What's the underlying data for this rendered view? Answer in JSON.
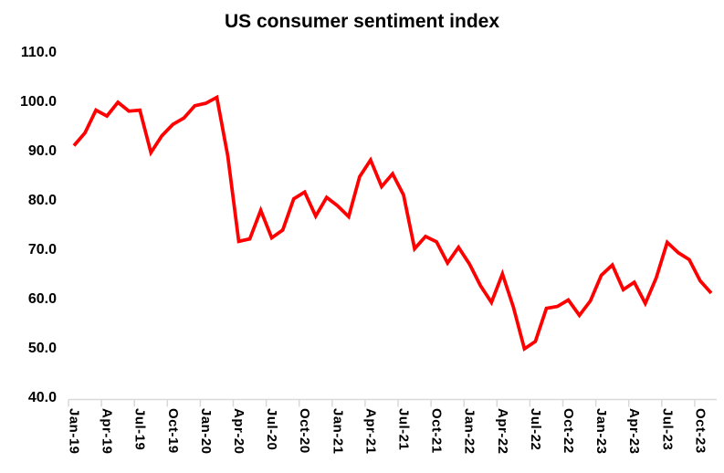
{
  "page": {
    "background": "#FFFFFF"
  },
  "chart_data": {
    "type": "line",
    "title": "US consumer sentiment index",
    "xlabel": "",
    "ylabel": "",
    "ylim": [
      40,
      110
    ],
    "grid": false,
    "legend": "none",
    "line_color": "#FF0000",
    "axis_color": "#D9D9D9",
    "text_color": "#000000",
    "x_tick_interval": 3,
    "y_tick_labels": [
      "110.0",
      "100.0",
      "90.0",
      "80.0",
      "70.0",
      "60.0",
      "50.0",
      "40.0"
    ],
    "x_tick_labels": [
      "Jan-19",
      "Apr-19",
      "Jul-19",
      "Oct-19",
      "Jan-20",
      "Apr-20",
      "Jul-20",
      "Oct-20",
      "Jan-21",
      "Apr-21",
      "Jul-21",
      "Oct-21",
      "Jan-22",
      "Apr-22",
      "Jul-22",
      "Oct-22",
      "Jan-23",
      "Apr-23",
      "Jul-23",
      "Oct-23"
    ],
    "x": [
      "Jan-19",
      "Feb-19",
      "Mar-19",
      "Apr-19",
      "May-19",
      "Jun-19",
      "Jul-19",
      "Aug-19",
      "Sep-19",
      "Oct-19",
      "Nov-19",
      "Dec-19",
      "Jan-20",
      "Feb-20",
      "Mar-20",
      "Apr-20",
      "May-20",
      "Jun-20",
      "Jul-20",
      "Aug-20",
      "Sep-20",
      "Oct-20",
      "Nov-20",
      "Dec-20",
      "Jan-21",
      "Feb-21",
      "Mar-21",
      "Apr-21",
      "May-21",
      "Jun-21",
      "Jul-21",
      "Aug-21",
      "Sep-21",
      "Oct-21",
      "Nov-21",
      "Dec-21",
      "Jan-22",
      "Feb-22",
      "Mar-22",
      "Apr-22",
      "May-22",
      "Jun-22",
      "Jul-22",
      "Aug-22",
      "Sep-22",
      "Oct-22",
      "Nov-22",
      "Dec-22",
      "Jan-23",
      "Feb-23",
      "Mar-23",
      "Apr-23",
      "May-23",
      "Jun-23",
      "Jul-23",
      "Aug-23",
      "Sep-23",
      "Oct-23",
      "Nov-23"
    ],
    "values": [
      91.2,
      93.8,
      98.4,
      97.2,
      100.0,
      98.2,
      98.4,
      89.8,
      93.2,
      95.5,
      96.8,
      99.3,
      99.8,
      101.0,
      89.1,
      71.8,
      72.3,
      78.1,
      72.5,
      74.1,
      80.4,
      81.8,
      76.9,
      80.7,
      79.0,
      76.8,
      84.9,
      88.3,
      82.9,
      85.5,
      81.2,
      70.3,
      72.8,
      71.7,
      67.4,
      70.6,
      67.2,
      62.8,
      59.4,
      65.2,
      58.4,
      50.0,
      51.5,
      58.2,
      58.6,
      59.9,
      56.8,
      59.7,
      64.9,
      67.0,
      62.0,
      63.5,
      59.2,
      64.4,
      71.6,
      69.5,
      68.1,
      63.8,
      61.3
    ]
  }
}
